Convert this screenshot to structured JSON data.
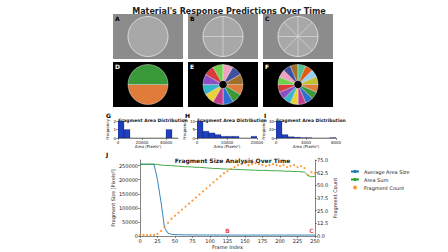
{
  "title": "Material's Response Predictions Over Time",
  "image_panels": [
    "A",
    "B",
    "C",
    "D",
    "E",
    "F"
  ],
  "chart_data": [
    {
      "type": "histogram",
      "label": "G",
      "title": "Fragment Area Distribution",
      "x_label": "Area (Pixels²)",
      "y_label": "Frequency",
      "bins": [
        0,
        5000,
        10000,
        15000,
        20000,
        25000,
        30000,
        35000,
        40000,
        45000,
        50000
      ],
      "values": [
        2,
        1,
        0,
        0,
        0,
        0,
        0,
        0,
        1,
        0
      ],
      "color": "#1f3fbf",
      "xlim": [
        0,
        50000
      ],
      "xticks": [
        0,
        20000,
        40000
      ],
      "ylim": [
        0,
        2
      ],
      "yticks": [
        0,
        1,
        2
      ],
      "grid": false
    },
    {
      "type": "histogram",
      "label": "H",
      "title": "Fragment Area Distribution",
      "x_label": "Area (Pixels²)",
      "y_label": "Frequency",
      "bins": [
        0,
        2000,
        4000,
        6000,
        8000,
        10000,
        12000,
        14000,
        16000,
        18000,
        20000
      ],
      "values": [
        10,
        4,
        3,
        2,
        1,
        1,
        1,
        0,
        0,
        1
      ],
      "color": "#1f3fbf",
      "xlim": [
        0,
        20000
      ],
      "xticks": [
        0,
        10000,
        20000
      ],
      "ylim": [
        0,
        10
      ],
      "yticks": [
        0,
        5,
        10
      ],
      "grid": false
    },
    {
      "type": "histogram",
      "label": "I",
      "title": "Fragment Area Distribution",
      "x_label": "Area (Pixels²)",
      "y_label": "Frequency",
      "bins": [
        0,
        800,
        1600,
        2400,
        3200,
        4000,
        4800,
        5600,
        6400,
        7200,
        8000
      ],
      "values": [
        40,
        8,
        3,
        2,
        1,
        1,
        0,
        0,
        0,
        1
      ],
      "color": "#1f3fbf",
      "xlim": [
        0,
        8000
      ],
      "xticks": [
        0,
        4000,
        8000
      ],
      "ylim": [
        0,
        40
      ],
      "yticks": [
        0,
        20,
        40
      ],
      "grid": false
    },
    {
      "type": "line",
      "label": "J",
      "title": "Fragment Size Analysis Over Time",
      "x_label": "Frame Index",
      "y_label": "Fragment Size [Pixels²]",
      "y2_label": "Fragment Count",
      "x": [
        0,
        5,
        10,
        15,
        20,
        25,
        30,
        35,
        40,
        45,
        50,
        55,
        60,
        65,
        70,
        75,
        80,
        85,
        90,
        95,
        100,
        105,
        110,
        115,
        120,
        125,
        130,
        135,
        140,
        145,
        150,
        155,
        160,
        165,
        170,
        175,
        180,
        185,
        190,
        195,
        200,
        205,
        210,
        215,
        220,
        225,
        230,
        235,
        240,
        245,
        250
      ],
      "series": [
        {
          "name": "Average Area Size",
          "color": "#1f77b4",
          "type": "line",
          "values": [
            255000,
            255000,
            255000,
            255000,
            255000,
            200000,
            120000,
            30000,
            10000,
            6000,
            5000,
            4500,
            4200,
            4000,
            3900,
            3800,
            3700,
            3600,
            3500,
            3500,
            3400,
            3400,
            3300,
            3300,
            3300,
            3300,
            3200,
            3200,
            3200,
            3200,
            3100,
            3100,
            3300,
            3300,
            3400,
            3300,
            3300,
            3200,
            3300,
            3300,
            3400,
            3300,
            3300,
            3400,
            3300,
            3300,
            3300,
            3300,
            3400,
            3600,
            3500
          ]
        },
        {
          "name": "Area Sum",
          "color": "#2ca02c",
          "type": "line",
          "values": [
            255000,
            255000,
            255000,
            255000,
            255000,
            254000,
            252000,
            251000,
            250000,
            250000,
            249000,
            248000,
            247000,
            246000,
            246000,
            245000,
            244000,
            244000,
            243000,
            242000,
            241000,
            240000,
            240000,
            239000,
            238000,
            238000,
            237000,
            237000,
            236000,
            236000,
            235000,
            235000,
            234000,
            234000,
            233000,
            233000,
            233000,
            232000,
            232000,
            232000,
            231000,
            231000,
            230000,
            230000,
            229000,
            229000,
            228000,
            227000,
            215000,
            210000,
            212000
          ]
        },
        {
          "name": "Fragment Count",
          "color": "#ff7f0e",
          "type": "scatter",
          "marker": "circle",
          "axis": "y2",
          "values": [
            1,
            1,
            1,
            1,
            1,
            2,
            5,
            9,
            13,
            17,
            20,
            23,
            26,
            29,
            32,
            35,
            38,
            41,
            44,
            47,
            50,
            53,
            56,
            59,
            62,
            64,
            66,
            68,
            70,
            71,
            72,
            70,
            71,
            72,
            71,
            70,
            69,
            70,
            71,
            70,
            69,
            70,
            68,
            69,
            70,
            68,
            69,
            67,
            60,
            63,
            62
          ]
        }
      ],
      "annotations": [
        {
          "text": "B",
          "x": 125,
          "y": 20000,
          "color": "#e02020"
        },
        {
          "text": "C",
          "x": 245,
          "y": 20000,
          "color": "#e02020"
        }
      ],
      "xlim": [
        0,
        250
      ],
      "xticks": [
        0,
        25,
        50,
        75,
        100,
        125,
        150,
        175,
        200,
        225,
        250
      ],
      "ylim": [
        0,
        270000
      ],
      "yticks": [
        0,
        50000,
        100000,
        150000,
        200000,
        250000
      ],
      "y2lim": [
        0,
        75
      ],
      "y2ticks": [
        {
          "value": 0,
          "label": "0.0"
        },
        12.5,
        {
          "value": 25,
          "label": "25.0"
        },
        37.5,
        {
          "value": 50,
          "label": "50.0"
        },
        62.5,
        {
          "value": 75,
          "label": "75.0"
        }
      ],
      "legend": "right",
      "grid": false
    }
  ]
}
